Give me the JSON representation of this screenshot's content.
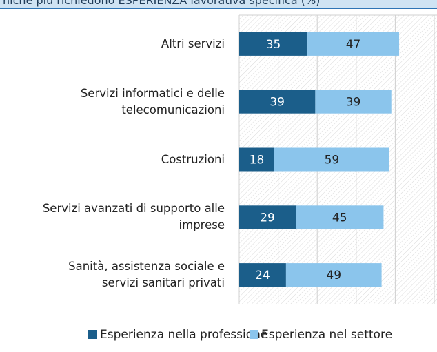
{
  "chart_data": {
    "type": "stacked-barh",
    "title": "niche più richiedono ESPERIENZA lavorativa specifica (%)",
    "categories": [
      "Altri servizi",
      "Servizi informatici e delle\ntelecomunicazioni",
      "Costruzioni",
      "Servizi avanzati di supporto alle\nimprese",
      "Sanità, assistenza sociale e\nservizi sanitari privati"
    ],
    "series": [
      {
        "name": "Esperienza nella professione",
        "color": "#1b5e8a",
        "values": [
          35,
          39,
          18,
          29,
          24
        ]
      },
      {
        "name": "Esperienza nel settore",
        "color": "#8bc5ec",
        "values": [
          47,
          39,
          59,
          45,
          49
        ]
      }
    ],
    "xlim": [
      0,
      100
    ],
    "xticks": [
      0,
      20,
      40,
      60,
      80,
      100
    ],
    "grid": true
  }
}
